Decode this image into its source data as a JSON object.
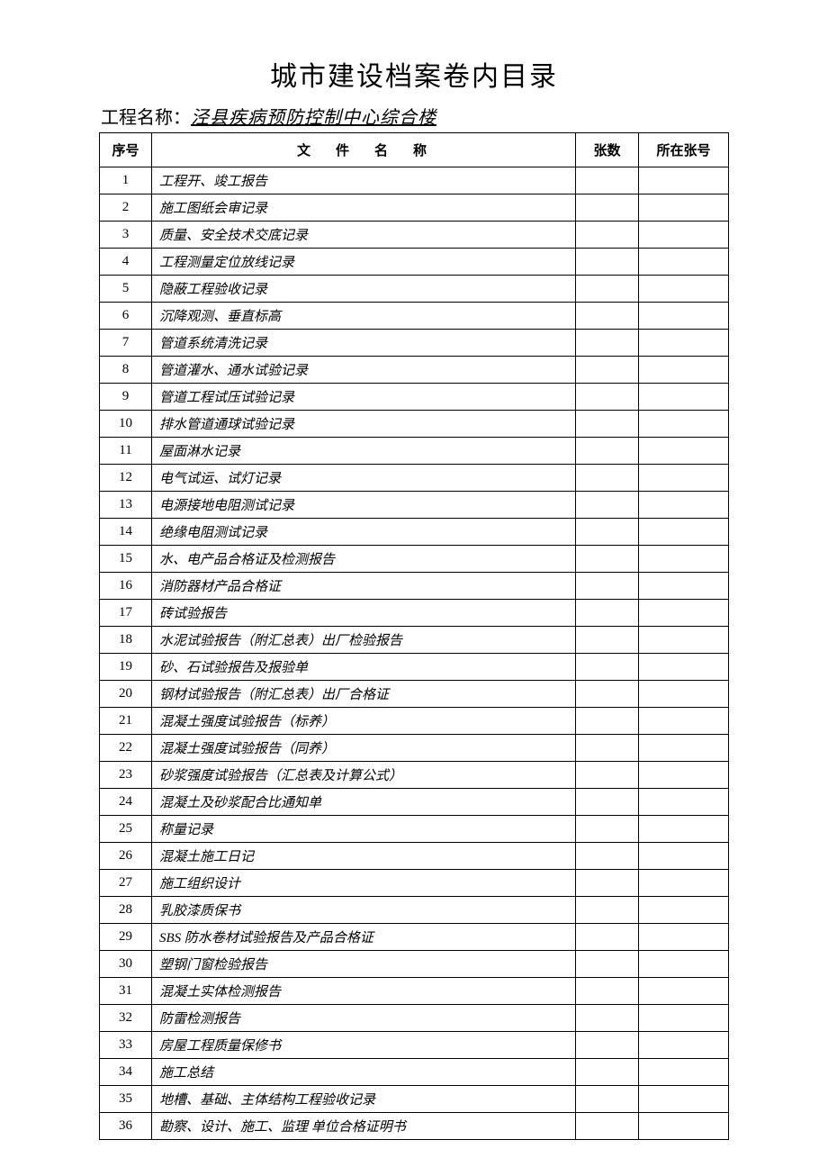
{
  "title": "城市建设档案卷内目录",
  "project": {
    "label": "工程名称：",
    "value": "泾县疾病预防控制中心综合楼"
  },
  "columns": {
    "seq": "序号",
    "name": "文件名称",
    "pages": "张数",
    "pageno": "所在张号"
  },
  "rows": [
    {
      "seq": "1",
      "name": "工程开、竣工报告",
      "pages": "",
      "pageno": ""
    },
    {
      "seq": "2",
      "name": "施工图纸会审记录",
      "pages": "",
      "pageno": ""
    },
    {
      "seq": "3",
      "name": "质量、安全技术交底记录",
      "pages": "",
      "pageno": ""
    },
    {
      "seq": "4",
      "name": "工程测量定位放线记录",
      "pages": "",
      "pageno": ""
    },
    {
      "seq": "5",
      "name": "隐蔽工程验收记录",
      "pages": "",
      "pageno": ""
    },
    {
      "seq": "6",
      "name": "沉降观测、垂直标高",
      "pages": "",
      "pageno": ""
    },
    {
      "seq": "7",
      "name": "管道系统清洗记录",
      "pages": "",
      "pageno": ""
    },
    {
      "seq": "8",
      "name": "管道灌水、通水试验记录",
      "pages": "",
      "pageno": ""
    },
    {
      "seq": "9",
      "name": "管道工程试压试验记录",
      "pages": "",
      "pageno": ""
    },
    {
      "seq": "10",
      "name": "排水管道通球试验记录",
      "pages": "",
      "pageno": ""
    },
    {
      "seq": "11",
      "name": "屋面淋水记录",
      "pages": "",
      "pageno": ""
    },
    {
      "seq": "12",
      "name": "电气试运、试灯记录",
      "pages": "",
      "pageno": ""
    },
    {
      "seq": "13",
      "name": "电源接地电阻测试记录",
      "pages": "",
      "pageno": ""
    },
    {
      "seq": "14",
      "name": "绝缘电阻测试记录",
      "pages": "",
      "pageno": ""
    },
    {
      "seq": "15",
      "name": "水、电产品合格证及检测报告",
      "pages": "",
      "pageno": ""
    },
    {
      "seq": "16",
      "name": "消防器材产品合格证",
      "pages": "",
      "pageno": ""
    },
    {
      "seq": "17",
      "name": "砖试验报告",
      "pages": "",
      "pageno": ""
    },
    {
      "seq": "18",
      "name": "水泥试验报告（附汇总表）出厂检验报告",
      "pages": "",
      "pageno": ""
    },
    {
      "seq": "19",
      "name": "砂、石试验报告及报验单",
      "pages": "",
      "pageno": ""
    },
    {
      "seq": "20",
      "name": "钢材试验报告（附汇总表）出厂合格证",
      "pages": "",
      "pageno": ""
    },
    {
      "seq": "21",
      "name": "混凝土强度试验报告（标养）",
      "pages": "",
      "pageno": ""
    },
    {
      "seq": "22",
      "name": "混凝土强度试验报告（同养）",
      "pages": "",
      "pageno": ""
    },
    {
      "seq": "23",
      "name": "砂浆强度试验报告（汇总表及计算公式）",
      "pages": "",
      "pageno": ""
    },
    {
      "seq": "24",
      "name": "混凝土及砂浆配合比通知单",
      "pages": "",
      "pageno": ""
    },
    {
      "seq": "25",
      "name": "称量记录",
      "pages": "",
      "pageno": ""
    },
    {
      "seq": "26",
      "name": "混凝土施工日记",
      "pages": "",
      "pageno": ""
    },
    {
      "seq": "27",
      "name": "施工组织设计",
      "pages": "",
      "pageno": ""
    },
    {
      "seq": "28",
      "name": "乳胶漆质保书",
      "pages": "",
      "pageno": ""
    },
    {
      "seq": "29",
      "name": "SBS 防水卷材试验报告及产品合格证",
      "pages": "",
      "pageno": ""
    },
    {
      "seq": "30",
      "name": "塑钢门窗检验报告",
      "pages": "",
      "pageno": ""
    },
    {
      "seq": "31",
      "name": "混凝土实体检测报告",
      "pages": "",
      "pageno": ""
    },
    {
      "seq": "32",
      "name": "防雷检测报告",
      "pages": "",
      "pageno": ""
    },
    {
      "seq": "33",
      "name": "房屋工程质量保修书",
      "pages": "",
      "pageno": ""
    },
    {
      "seq": "34",
      "name": "施工总结",
      "pages": "",
      "pageno": ""
    },
    {
      "seq": "35",
      "name": "地槽、基础、主体结构工程验收记录",
      "pages": "",
      "pageno": ""
    },
    {
      "seq": "36",
      "name": "勘察、设计、施工、监理 单位合格证明书",
      "pages": "",
      "pageno": ""
    }
  ],
  "style": {
    "background_color": "#ffffff",
    "border_color": "#000000",
    "title_fontsize": 30,
    "body_fontsize": 15,
    "project_fontsize": 20
  }
}
